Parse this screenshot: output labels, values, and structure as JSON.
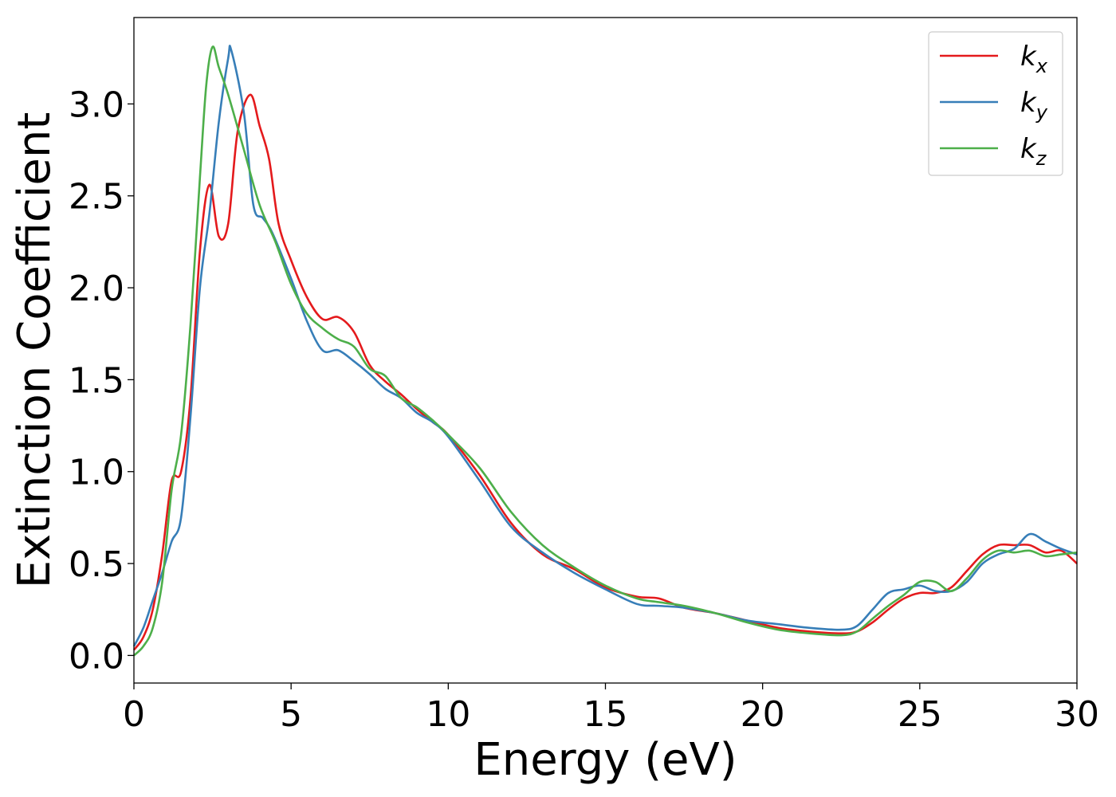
{
  "chart_data": {
    "type": "line",
    "title": "",
    "xlabel": "Energy (eV)",
    "ylabel": "Extinction Coefficient",
    "xlim": [
      0,
      30
    ],
    "ylim": [
      -0.15,
      3.47
    ],
    "xticks": [
      0,
      5,
      10,
      15,
      20,
      25,
      30
    ],
    "xtick_labels": [
      "0",
      "5",
      "10",
      "15",
      "20",
      "25",
      "30"
    ],
    "yticks": [
      0.0,
      0.5,
      1.0,
      1.5,
      2.0,
      2.5,
      3.0
    ],
    "ytick_labels": [
      "0.0",
      "0.5",
      "1.0",
      "1.5",
      "2.0",
      "2.5",
      "3.0"
    ],
    "grid": false,
    "legend_position": "top-right",
    "series": [
      {
        "name": "k_x",
        "legend_base": "k",
        "legend_sub": "x",
        "color": "#e41a1c",
        "x": [
          0,
          0.3,
          0.6,
          0.9,
          1.2,
          1.5,
          1.8,
          2.1,
          2.4,
          2.7,
          3.0,
          3.3,
          3.7,
          4.0,
          4.3,
          4.6,
          5.0,
          5.5,
          6.0,
          6.5,
          7.0,
          7.5,
          8.0,
          8.5,
          9.0,
          9.5,
          10.0,
          11.0,
          12.0,
          13.0,
          14.0,
          15.0,
          16.0,
          16.7,
          17.5,
          18.5,
          19.5,
          20.5,
          21.5,
          22.5,
          23.0,
          23.5,
          24.0,
          24.5,
          25.0,
          25.5,
          26.0,
          26.5,
          27.0,
          27.5,
          28.0,
          28.5,
          29.0,
          29.5,
          30.0
        ],
        "y": [
          0.03,
          0.1,
          0.25,
          0.55,
          0.95,
          1.0,
          1.4,
          2.2,
          2.56,
          2.28,
          2.35,
          2.85,
          3.05,
          2.88,
          2.7,
          2.35,
          2.15,
          1.95,
          1.83,
          1.84,
          1.76,
          1.58,
          1.49,
          1.42,
          1.34,
          1.27,
          1.2,
          0.98,
          0.72,
          0.55,
          0.47,
          0.37,
          0.32,
          0.31,
          0.26,
          0.23,
          0.19,
          0.15,
          0.13,
          0.12,
          0.13,
          0.18,
          0.25,
          0.31,
          0.34,
          0.34,
          0.37,
          0.46,
          0.55,
          0.6,
          0.6,
          0.6,
          0.56,
          0.57,
          0.5
        ]
      },
      {
        "name": "k_y",
        "legend_base": "k",
        "legend_sub": "y",
        "color": "#377eb8",
        "x": [
          0,
          0.3,
          0.6,
          0.9,
          1.2,
          1.5,
          1.8,
          2.1,
          2.4,
          2.7,
          3.0,
          3.1,
          3.5,
          3.8,
          4.1,
          4.4,
          5.0,
          5.5,
          6.0,
          6.5,
          7.0,
          7.5,
          8.0,
          8.5,
          9.0,
          9.5,
          10.0,
          11.0,
          12.0,
          13.0,
          14.0,
          15.0,
          16.0,
          16.7,
          17.5,
          18.5,
          19.5,
          20.5,
          21.5,
          22.5,
          23.0,
          23.5,
          24.0,
          24.5,
          25.0,
          25.5,
          26.0,
          26.5,
          27.0,
          27.5,
          28.0,
          28.5,
          29.0,
          29.5,
          30.0
        ],
        "y": [
          0.05,
          0.15,
          0.3,
          0.45,
          0.62,
          0.75,
          1.3,
          2.0,
          2.4,
          2.9,
          3.25,
          3.29,
          2.95,
          2.45,
          2.38,
          2.3,
          2.05,
          1.82,
          1.66,
          1.66,
          1.6,
          1.53,
          1.45,
          1.4,
          1.32,
          1.27,
          1.19,
          0.95,
          0.7,
          0.56,
          0.45,
          0.36,
          0.28,
          0.27,
          0.26,
          0.23,
          0.19,
          0.17,
          0.15,
          0.14,
          0.16,
          0.25,
          0.34,
          0.36,
          0.38,
          0.35,
          0.35,
          0.4,
          0.5,
          0.55,
          0.58,
          0.66,
          0.62,
          0.58,
          0.55
        ]
      },
      {
        "name": "k_z",
        "legend_base": "k",
        "legend_sub": "z",
        "color": "#4daf4a",
        "x": [
          0,
          0.3,
          0.6,
          0.9,
          1.2,
          1.5,
          1.8,
          2.1,
          2.3,
          2.5,
          2.7,
          3.0,
          3.5,
          4.0,
          4.5,
          5.0,
          5.5,
          6.0,
          6.5,
          7.0,
          7.5,
          8.0,
          8.5,
          9.0,
          9.5,
          10.0,
          11.0,
          12.0,
          13.0,
          14.0,
          15.0,
          16.0,
          16.7,
          17.5,
          18.5,
          19.5,
          20.5,
          21.5,
          22.5,
          23.0,
          23.5,
          24.0,
          24.5,
          25.0,
          25.5,
          26.0,
          26.5,
          27.0,
          27.5,
          28.0,
          28.5,
          29.0,
          29.5,
          30.0
        ],
        "y": [
          0.0,
          0.05,
          0.15,
          0.4,
          0.9,
          1.2,
          1.8,
          2.6,
          3.1,
          3.31,
          3.2,
          3.05,
          2.75,
          2.45,
          2.25,
          2.02,
          1.86,
          1.78,
          1.72,
          1.68,
          1.56,
          1.52,
          1.4,
          1.35,
          1.28,
          1.2,
          1.02,
          0.78,
          0.6,
          0.48,
          0.38,
          0.31,
          0.29,
          0.27,
          0.23,
          0.18,
          0.14,
          0.12,
          0.11,
          0.13,
          0.2,
          0.27,
          0.33,
          0.4,
          0.4,
          0.35,
          0.42,
          0.52,
          0.57,
          0.56,
          0.57,
          0.54,
          0.55,
          0.56
        ]
      }
    ]
  }
}
